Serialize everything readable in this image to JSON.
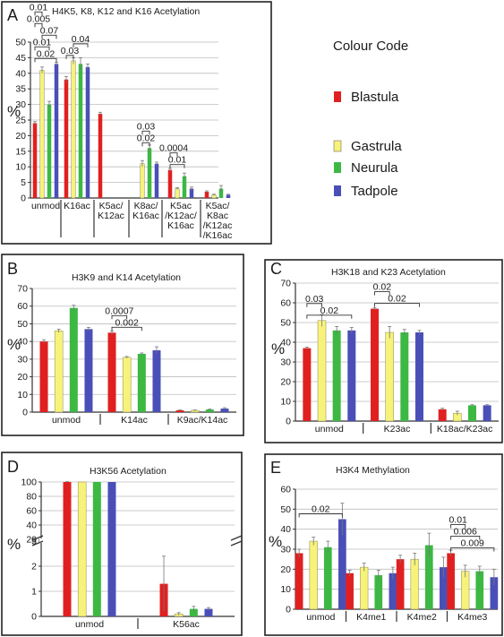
{
  "colour_code": {
    "title": "Colour Code",
    "items": [
      {
        "label": "Blastula",
        "color": "#e02020"
      },
      {
        "label": "Gastrula",
        "color": "#f7f27a"
      },
      {
        "label": "Neurula",
        "color": "#3cb843"
      },
      {
        "label": "Tadpole",
        "color": "#4a4fb8"
      }
    ]
  },
  "series_colors": [
    "#e02020",
    "#f7f27a",
    "#3cb843",
    "#4a4fb8"
  ],
  "chart_data": [
    {
      "letter": "A",
      "type": "bar",
      "title": "H4K5, K8, K12 and K16 Acetylation",
      "ylabel": "%",
      "ylim": [
        0,
        50
      ],
      "yticks": [
        0,
        5,
        10,
        15,
        20,
        25,
        30,
        35,
        40,
        45,
        50
      ],
      "categories": [
        "unmod",
        "K16ac",
        "K5ac/\nK12ac",
        "K8ac/\nK16ac",
        "K5ac\n/K12ac/\nK16ac",
        "K5ac/\nK8ac\n/K12ac\n/K16ac"
      ],
      "values": [
        [
          24,
          41,
          30,
          43
        ],
        [
          38,
          44,
          43,
          42
        ],
        [
          27,
          null,
          null,
          null
        ],
        [
          null,
          11,
          16,
          11
        ],
        [
          9,
          3,
          7,
          3
        ],
        [
          2,
          1,
          3,
          1
        ]
      ],
      "errors": [
        [
          0.5,
          1,
          1,
          0.5
        ],
        [
          1,
          1,
          2,
          1
        ],
        [
          0.5,
          0,
          0,
          0
        ],
        [
          0,
          1,
          1,
          0.5
        ],
        [
          0.5,
          0.3,
          1,
          0.5
        ],
        [
          0.3,
          0.2,
          1,
          0.2
        ]
      ],
      "pvalues": [
        {
          "label": "0.02",
          "cat": 0,
          "from": 0,
          "to": 3
        },
        {
          "label": "0.01",
          "cat": 0,
          "from": 0,
          "to": 2
        },
        {
          "label": "0.07",
          "cat": 0,
          "from": 1,
          "to": 3
        },
        {
          "label": "0.005",
          "cat": 0,
          "from": 0,
          "to": 1
        },
        {
          "label": "0.01",
          "cat": 0,
          "from": 0,
          "to": 1
        },
        {
          "label": "0.03",
          "cat": 1,
          "from": 0,
          "to": 1
        },
        {
          "label": "0.04",
          "cat": 1,
          "from": 1,
          "to": 3
        },
        {
          "label": "0.02",
          "cat": 3,
          "from": 1,
          "to": 2
        },
        {
          "label": "0.03",
          "cat": 3,
          "from": 1,
          "to": 2
        },
        {
          "label": "0.01",
          "cat": 4,
          "from": 0,
          "to": 2
        },
        {
          "label": "0.0004",
          "cat": 4,
          "from": 0,
          "to": 1
        }
      ]
    },
    {
      "letter": "B",
      "type": "bar",
      "title": "H3K9 and K14 Acetylation",
      "ylabel": "%",
      "ylim": [
        0,
        70
      ],
      "yticks": [
        0,
        10,
        20,
        30,
        40,
        50,
        60,
        70
      ],
      "categories": [
        "unmod",
        "K14ac",
        "K9ac/K14ac"
      ],
      "values": [
        [
          40,
          46,
          59,
          47
        ],
        [
          45,
          31,
          33,
          35
        ],
        [
          1,
          1,
          1.5,
          2
        ]
      ],
      "errors": [
        [
          1,
          1,
          1.5,
          1
        ],
        [
          1,
          0.5,
          0.5,
          2
        ],
        [
          0.2,
          0.2,
          0.2,
          0.5
        ]
      ],
      "pvalues": [
        {
          "label": "0.002",
          "cat": 1,
          "from": 0,
          "to": 2
        },
        {
          "label": "0.0007",
          "cat": 1,
          "from": 0,
          "to": 1
        }
      ]
    },
    {
      "letter": "C",
      "type": "bar",
      "title": "H3K18 and K23 Acetylation",
      "ylabel": "%",
      "ylim": [
        0,
        70
      ],
      "yticks": [
        0,
        10,
        20,
        30,
        40,
        50,
        60,
        70
      ],
      "categories": [
        "unmod",
        "K23ac",
        "K18ac/K23ac"
      ],
      "values": [
        [
          37,
          51,
          46,
          46
        ],
        [
          57,
          45,
          45,
          45
        ],
        [
          6,
          4,
          8,
          8
        ]
      ],
      "errors": [
        [
          0.5,
          3,
          2,
          1.5
        ],
        [
          0.5,
          3,
          1.5,
          1
        ],
        [
          0.5,
          1,
          0.3,
          0.3
        ]
      ],
      "pvalues": [
        {
          "label": "0.02",
          "cat": 0,
          "from": 0,
          "to": 3
        },
        {
          "label": "0.03",
          "cat": 0,
          "from": 0,
          "to": 1
        },
        {
          "label": "0.02",
          "cat": 1,
          "from": 0,
          "to": 3
        },
        {
          "label": "0.02",
          "cat": 1,
          "from": 0,
          "to": 1
        }
      ]
    },
    {
      "letter": "D",
      "type": "bar",
      "title": "H3K56 Acetylation",
      "ylabel": "%",
      "ylim": [
        0,
        100
      ],
      "yticks": [
        0,
        1,
        2,
        3,
        20,
        40,
        60,
        80,
        100
      ],
      "axis_break": "3-20",
      "categories": [
        "unmod",
        "K56ac"
      ],
      "values": [
        [
          100,
          100,
          100,
          100
        ],
        [
          1.3,
          0.1,
          0.3,
          0.3
        ]
      ],
      "errors": [
        [
          0.5,
          0,
          0,
          0
        ],
        [
          1.1,
          0.05,
          0.1,
          0.05
        ]
      ],
      "pvalues": []
    },
    {
      "letter": "E",
      "type": "bar",
      "title": "H3K4 Methylation",
      "ylabel": "%",
      "ylim": [
        0,
        60
      ],
      "yticks": [
        0,
        10,
        20,
        30,
        40,
        50,
        60
      ],
      "categories": [
        "unmod",
        "K4me1",
        "K4me2",
        "K4me3"
      ],
      "values": [
        [
          28,
          34,
          31,
          45
        ],
        [
          18,
          21,
          17,
          18
        ],
        [
          25,
          25,
          32,
          21
        ],
        [
          28,
          19,
          19,
          16
        ]
      ],
      "errors": [
        [
          2,
          2,
          3,
          8
        ],
        [
          1.5,
          2,
          2.5,
          3
        ],
        [
          2,
          3,
          6,
          5
        ],
        [
          1.5,
          3,
          2.5,
          4
        ]
      ],
      "pvalues": [
        {
          "label": "0.02",
          "cat": 0,
          "from": 0,
          "to": 3
        },
        {
          "label": "0.009",
          "cat": 3,
          "from": 0,
          "to": 3
        },
        {
          "label": "0.006",
          "cat": 3,
          "from": 0,
          "to": 2
        },
        {
          "label": "0.01",
          "cat": 3,
          "from": 0,
          "to": 1
        }
      ]
    }
  ]
}
